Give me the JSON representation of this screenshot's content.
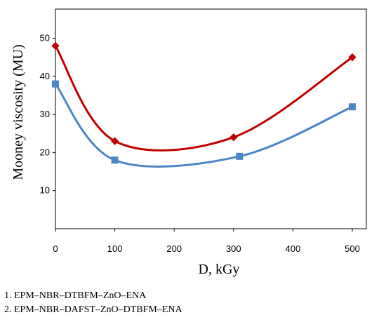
{
  "chart_data": {
    "type": "line",
    "xlabel": "D, kGy",
    "ylabel": "Mooney viscosity (MU)",
    "xlim": [
      0,
      500
    ],
    "ylim": [
      0,
      55
    ],
    "xticks": [
      0,
      100,
      200,
      300,
      400,
      500
    ],
    "yticks": [
      10,
      20,
      30,
      40,
      50
    ],
    "grid": false,
    "series": [
      {
        "color": "#c00000",
        "marker": "diamond",
        "x": [
          0,
          100,
          300,
          500
        ],
        "y": [
          48,
          23,
          24,
          45
        ]
      },
      {
        "color": "#4a86c8",
        "marker": "square",
        "x": [
          0,
          100,
          310,
          500
        ],
        "y": [
          38,
          18,
          19,
          32
        ]
      }
    ],
    "legend_notes": [
      "1. EPM–NBR–DTBFM–ZnO–ENA",
      "2. EPM–NBR–DAFST–ZnO–DTBFM–ENA"
    ]
  }
}
